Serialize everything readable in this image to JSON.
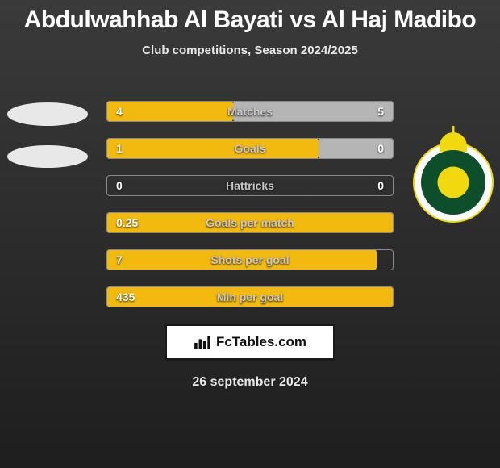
{
  "header": {
    "title": "Abdulwahhab Al Bayati vs Al Haj Madibo",
    "subtitle": "Club competitions, Season 2024/2025"
  },
  "colors": {
    "bar_left": "#f2b90f",
    "bar_right": "#b5b5b5",
    "track_border": "#8a8a8a"
  },
  "stats": [
    {
      "label": "Matches",
      "left_val": "4",
      "right_val": "5",
      "left_pct": 44,
      "right_pct": 56
    },
    {
      "label": "Goals",
      "left_val": "1",
      "right_val": "0",
      "left_pct": 74,
      "right_pct": 26
    },
    {
      "label": "Hattricks",
      "left_val": "0",
      "right_val": "0",
      "left_pct": 0,
      "right_pct": 0
    },
    {
      "label": "Goals per match",
      "left_val": "0.25",
      "right_val": "",
      "left_pct": 100,
      "right_pct": 0
    },
    {
      "label": "Shots per goal",
      "left_val": "7",
      "right_val": "",
      "left_pct": 94,
      "right_pct": 0
    },
    {
      "label": "Min per goal",
      "left_val": "435",
      "right_val": "",
      "left_pct": 100,
      "right_pct": 0
    }
  ],
  "brand": {
    "text": "FcTables.com"
  },
  "date": "26 september 2024"
}
